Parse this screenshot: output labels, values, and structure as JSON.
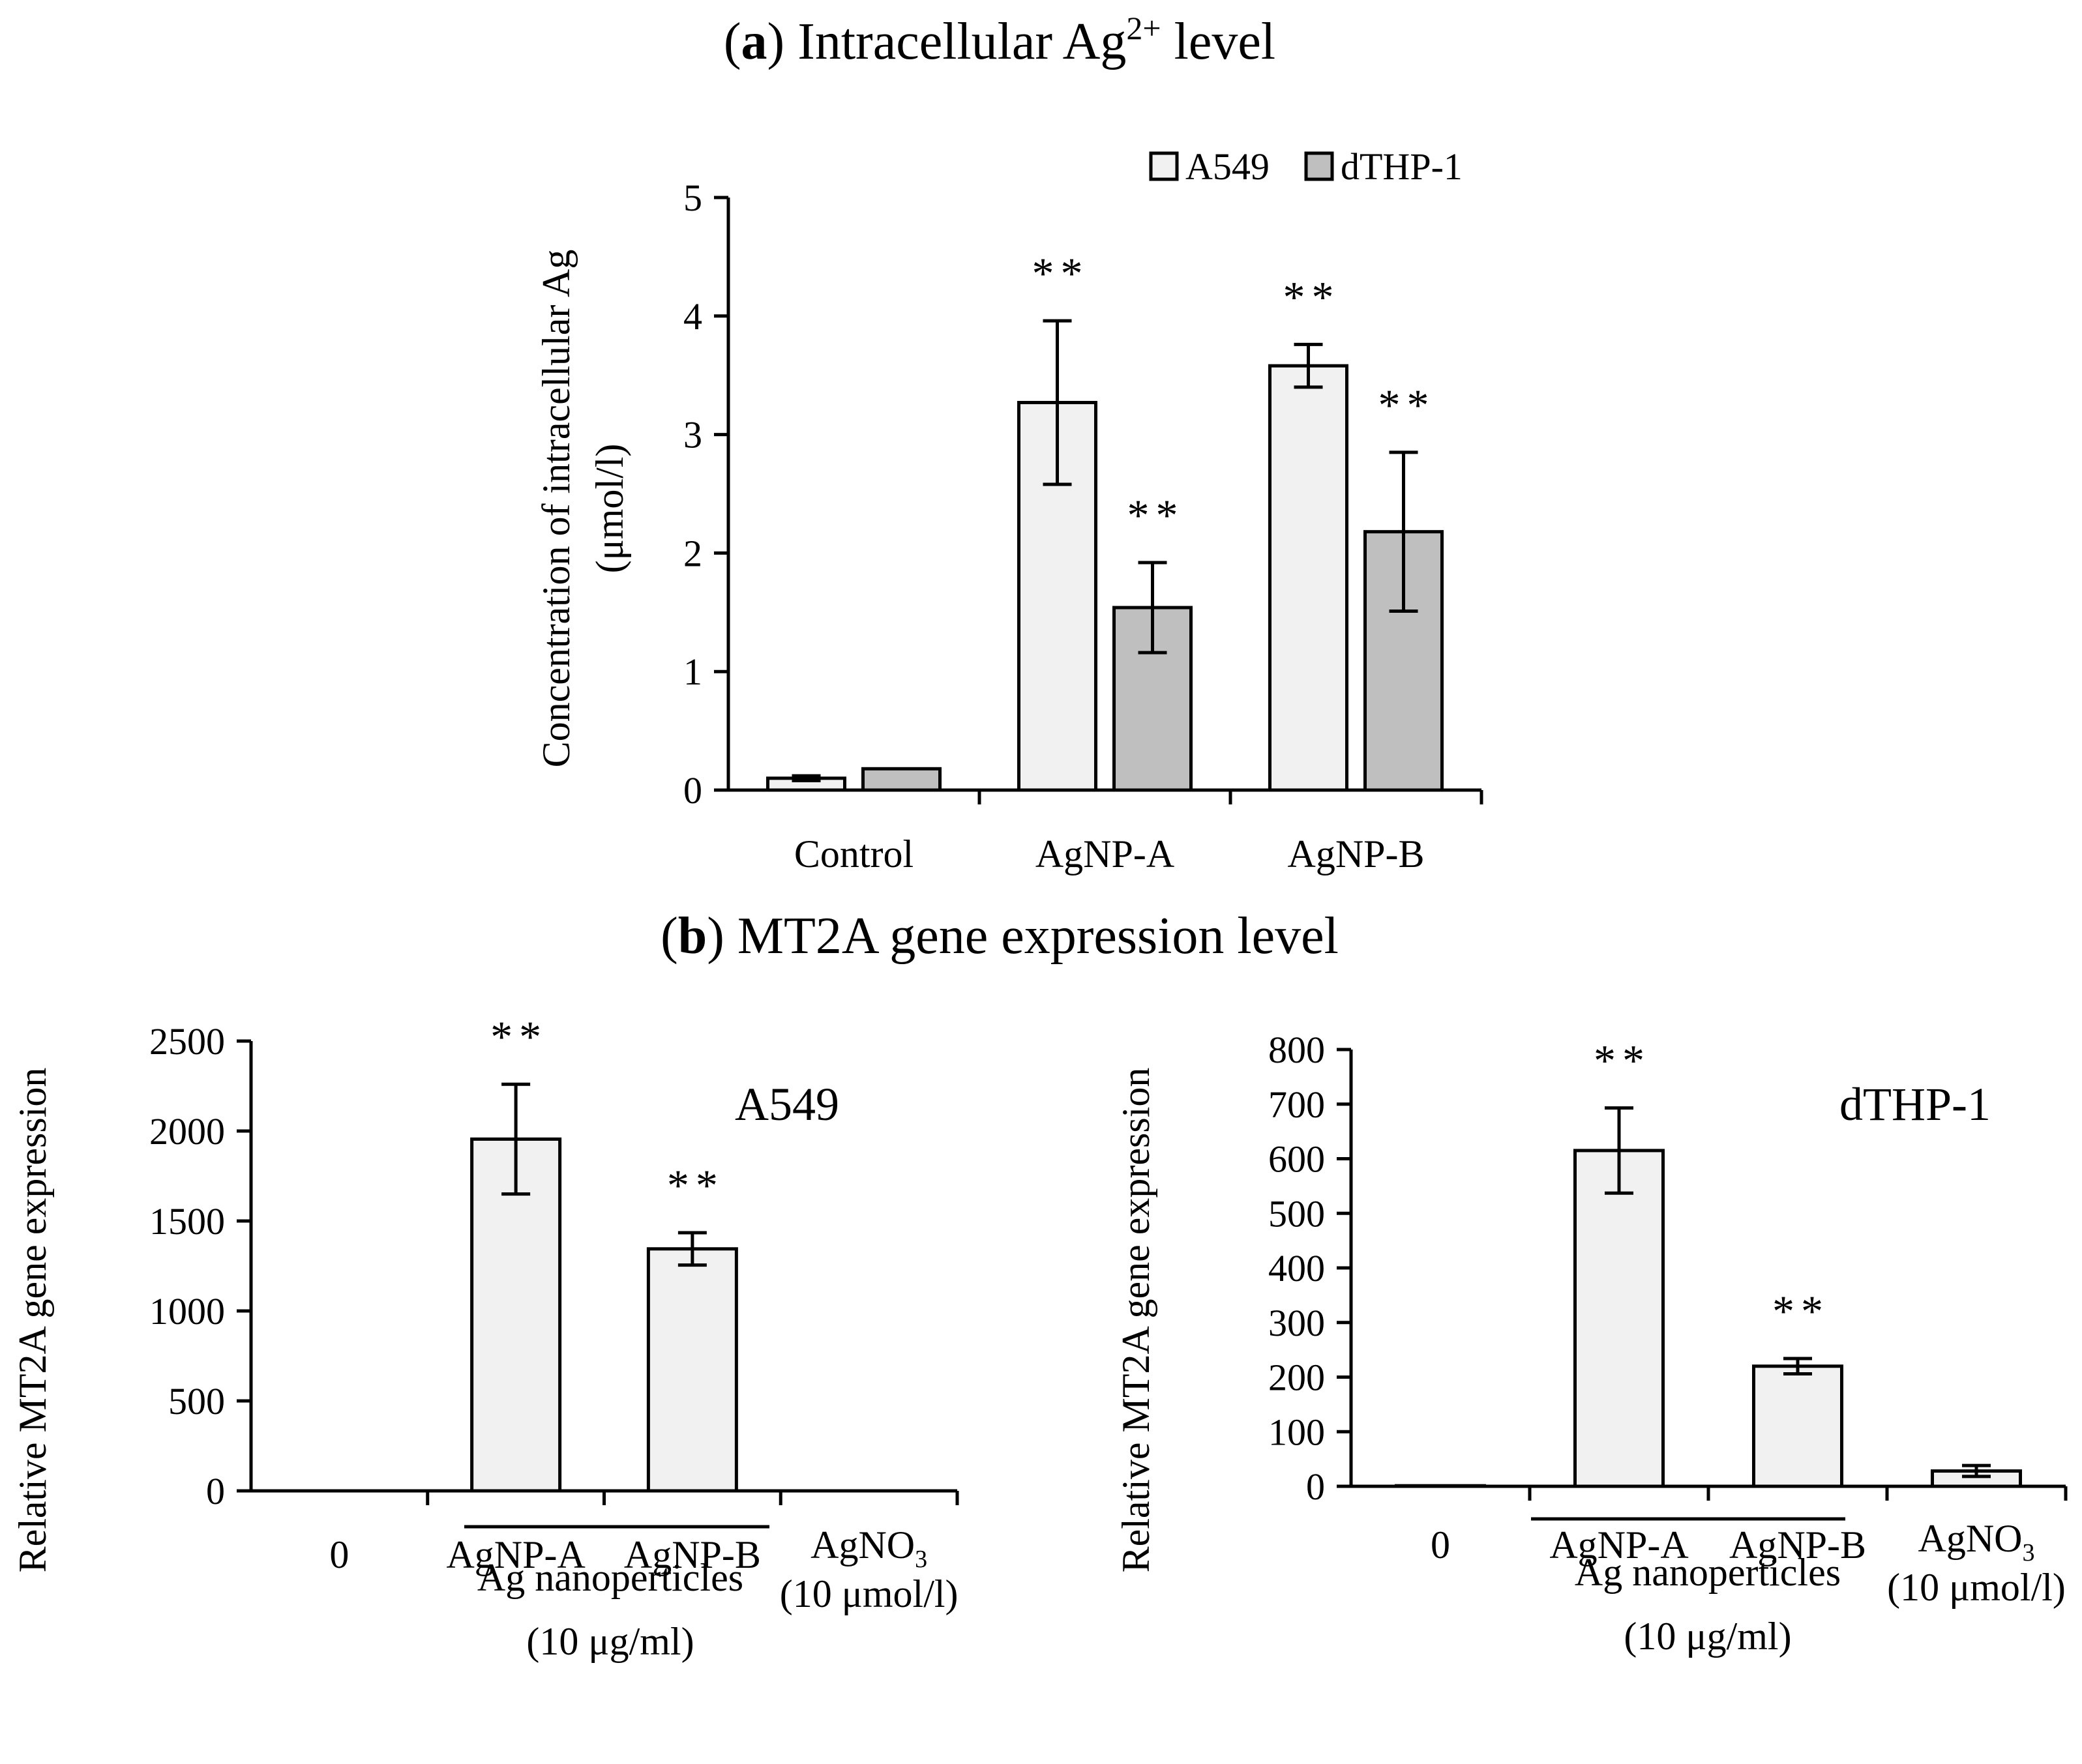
{
  "panel_a": {
    "title_letter": "a",
    "title_text": "Intracellular Ag",
    "title_superscript": "2+",
    "title_suffix": "level"
  },
  "panel_b": {
    "title_letter": "b",
    "title_text": "MT2A gene expression level"
  },
  "colors": {
    "light_bar": "#f1f1f1",
    "dark_bar": "#bfbfbf"
  },
  "chart_data": [
    {
      "type": "bar",
      "title": "(a) Intracellular Ag2+ level",
      "categories": [
        "Control",
        "AgNP-A",
        "AgNP-B"
      ],
      "series": [
        {
          "name": "A549",
          "values": [
            0.1,
            3.27,
            3.58
          ],
          "errors": [
            0.02,
            0.69,
            0.18
          ],
          "significance": [
            "",
            "**",
            "**"
          ]
        },
        {
          "name": "dTHP-1",
          "values": [
            0.18,
            1.54,
            2.18
          ],
          "errors": [
            0.0,
            0.38,
            0.67
          ],
          "significance": [
            "",
            "**",
            "**"
          ]
        }
      ],
      "ylabel_line1": "Concentration of intracellular Ag",
      "ylabel_line2": "(μmol/l)",
      "ylim": [
        0,
        5
      ],
      "yticks": [
        "0",
        "1",
        "2",
        "3",
        "4",
        "5"
      ],
      "legend_position": "top-right"
    },
    {
      "type": "bar",
      "title": "A549",
      "categories": [
        "0",
        "AgNP-A",
        "AgNP-B",
        "AgNO3"
      ],
      "values": [
        0,
        1955,
        1345,
        0
      ],
      "errors": [
        0,
        305,
        90,
        0
      ],
      "significance": [
        "",
        "**",
        "**",
        ""
      ],
      "ylabel": "Relative MT2A gene expression",
      "ylim": [
        0,
        2500
      ],
      "yticks": [
        "0",
        "500",
        "1000",
        "1500",
        "2000",
        "2500"
      ]
    },
    {
      "type": "bar",
      "title": "dTHP-1",
      "categories": [
        "0",
        "AgNP-A",
        "AgNP-B",
        "AgNO3"
      ],
      "values": [
        1,
        615,
        220,
        28
      ],
      "errors": [
        0,
        78,
        14,
        10
      ],
      "significance": [
        "",
        "**",
        "**",
        ""
      ],
      "ylabel": "Relative MT2A gene expression",
      "ylim": [
        0,
        800
      ],
      "yticks": [
        "0",
        "100",
        "200",
        "300",
        "400",
        "500",
        "600",
        "700",
        "800"
      ]
    }
  ],
  "group_label": {
    "line1": "Ag nanoperticles",
    "line2": "(10 μg/ml)"
  },
  "agno3_label": {
    "main": "AgNO",
    "subscript": "3",
    "conc": "(10 μmol/l)"
  }
}
